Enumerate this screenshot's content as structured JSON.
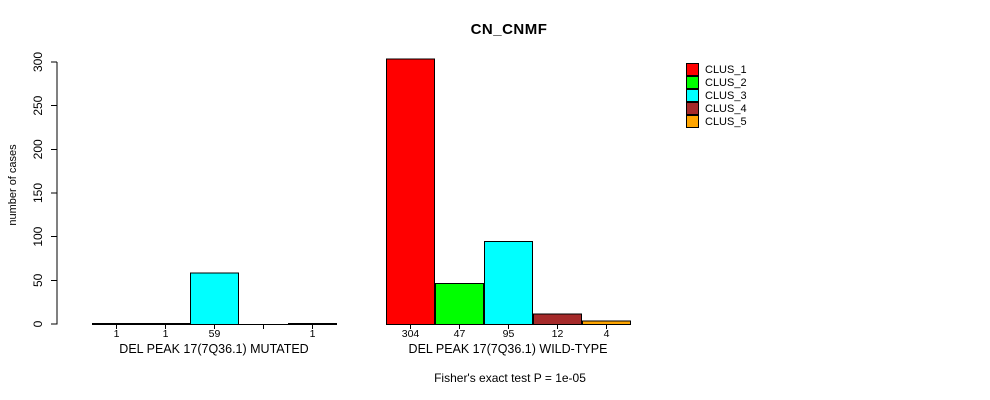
{
  "title": "CN_CNMF",
  "chart_data": {
    "type": "bar",
    "title": "CN_CNMF",
    "ylabel": "number of cases",
    "ylim": [
      0,
      300
    ],
    "yticks": [
      0,
      50,
      100,
      150,
      200,
      250,
      300
    ],
    "grid": false,
    "legend": {
      "position": "right",
      "entries": [
        {
          "label": "CLUS_1",
          "color": "#FF0000"
        },
        {
          "label": "CLUS_2",
          "color": "#00FF00"
        },
        {
          "label": "CLUS_3",
          "color": "#00FFFF"
        },
        {
          "label": "CLUS_4",
          "color": "#A52A2A"
        },
        {
          "label": "CLUS_5",
          "color": "#FFA500"
        }
      ]
    },
    "groups": [
      {
        "label": "DEL PEAK 17(7Q36.1) MUTATED",
        "categories": [
          "CLUS_1",
          "CLUS_2",
          "CLUS_3",
          "CLUS_4",
          "CLUS_5"
        ],
        "values": [
          1,
          1,
          59,
          0,
          1
        ],
        "bar_labels": [
          "1",
          "1",
          "59",
          "",
          "1"
        ],
        "colors": [
          "#FF0000",
          "#00FF00",
          "#00FFFF",
          "#A52A2A",
          "#FFA500"
        ]
      },
      {
        "label": "DEL PEAK 17(7Q36.1) WILD-TYPE",
        "categories": [
          "CLUS_1",
          "CLUS_2",
          "CLUS_3",
          "CLUS_4",
          "CLUS_5"
        ],
        "values": [
          304,
          47,
          95,
          12,
          4
        ],
        "bar_labels": [
          "304",
          "47",
          "95",
          "12",
          "4"
        ],
        "colors": [
          "#FF0000",
          "#00FF00",
          "#00FFFF",
          "#A52A2A",
          "#FFA500"
        ]
      }
    ],
    "annotation": "Fisher's exact test P = 1e-05"
  }
}
